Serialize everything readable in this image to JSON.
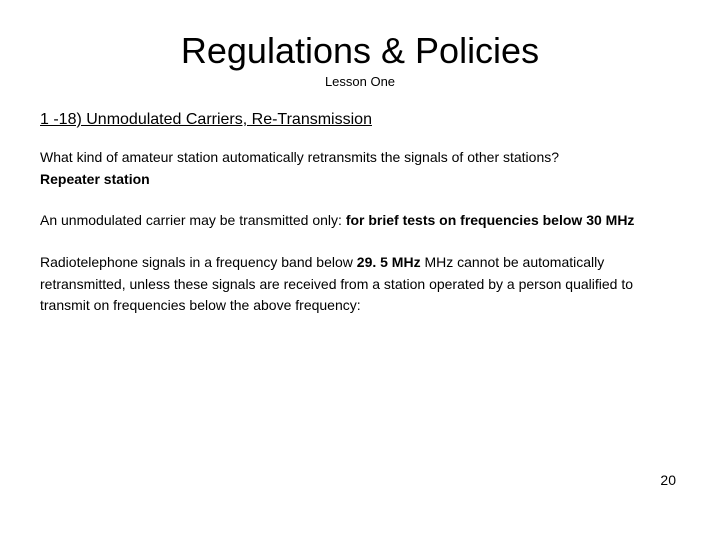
{
  "title": "Regulations & Policies",
  "subtitle": "Lesson One",
  "section_heading": "1 -18) Unmodulated Carriers, Re-Transmission",
  "p1_q": "What kind of amateur station automatically retransmits the signals of other stations?",
  "p1_a": "Repeater station",
  "p2_lead": "An unmodulated carrier may be transmitted only: ",
  "p2_bold": "for brief tests on frequencies below 30 MHz",
  "p3_a": "Radiotelephone signals in a frequency band below ",
  "p3_bold": "29. 5 MHz",
  "p3_b": "  MHz cannot be automatically retransmitted, unless these signals are received from a station operated by a person qualified to transmit on frequencies below the above frequency:",
  "page_number": "20",
  "colors": {
    "background": "#ffffff",
    "text": "#000000"
  },
  "fonts": {
    "title_size_pt": 36,
    "subtitle_size_pt": 13,
    "heading_size_pt": 16,
    "body_size_pt": 14
  }
}
